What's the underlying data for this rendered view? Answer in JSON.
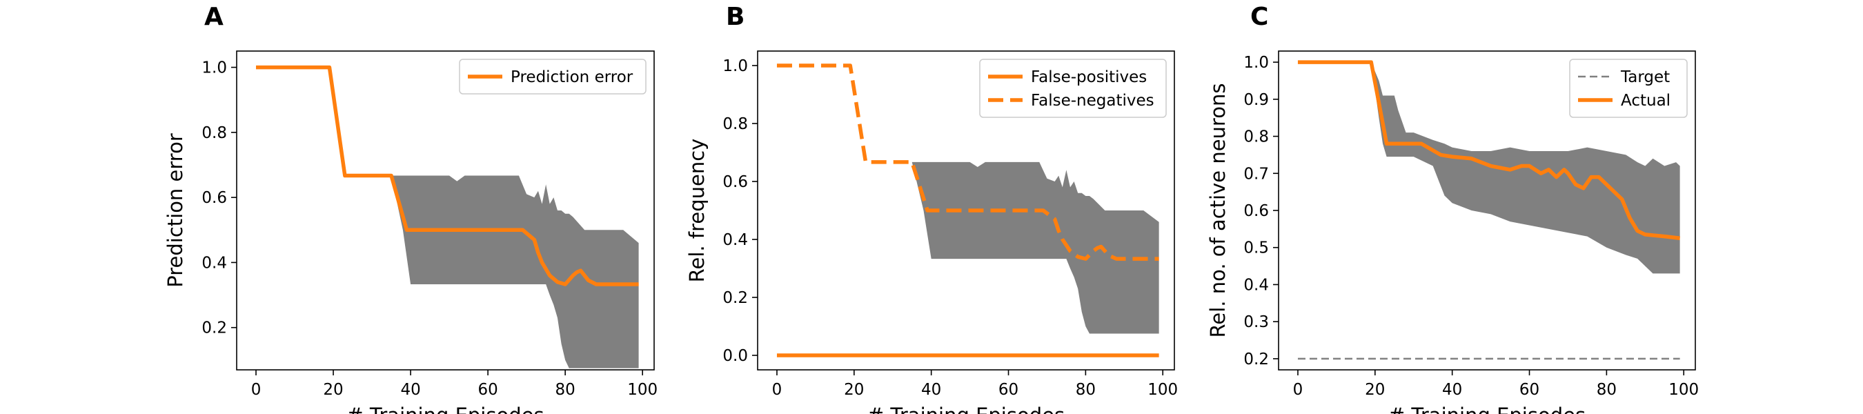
{
  "chart_data": [
    {
      "type": "line",
      "panel_label": "A",
      "xlabel": "# Training Episodes",
      "ylabel": "Prediction error",
      "xlim": [
        -5,
        103
      ],
      "ylim": [
        0.07,
        1.05
      ],
      "xticks": [
        0,
        20,
        40,
        60,
        80,
        100
      ],
      "yticks": [
        0.2,
        0.4,
        0.6,
        0.8,
        1.0
      ],
      "ytick_labels": [
        "0.2",
        "0.4",
        "0.6",
        "0.8",
        "1.0"
      ],
      "grid": false,
      "legend": "top-right",
      "colors": {
        "series": "#ff7f0e",
        "band": "#808080"
      },
      "band": {
        "x": [
          35,
          38,
          40,
          50,
          52,
          54,
          60,
          62,
          65,
          68,
          70,
          72,
          73,
          74,
          75,
          76,
          77,
          78,
          79,
          80,
          81,
          82,
          85,
          90,
          95,
          99
        ],
        "upper": [
          0.667,
          0.667,
          0.667,
          0.667,
          0.65,
          0.667,
          0.667,
          0.667,
          0.667,
          0.667,
          0.61,
          0.6,
          0.62,
          0.58,
          0.64,
          0.58,
          0.6,
          0.56,
          0.56,
          0.55,
          0.55,
          0.54,
          0.5,
          0.5,
          0.5,
          0.46
        ],
        "lower": [
          0.667,
          0.5,
          0.333,
          0.333,
          0.333,
          0.333,
          0.333,
          0.333,
          0.333,
          0.333,
          0.333,
          0.333,
          0.333,
          0.333,
          0.333,
          0.3,
          0.27,
          0.23,
          0.15,
          0.1,
          0.075,
          0.075,
          0.075,
          0.075,
          0.075,
          0.075
        ]
      },
      "series": [
        {
          "name": "Prediction error",
          "style": "solid",
          "x": [
            0,
            19,
            23,
            35,
            39,
            69,
            71,
            72,
            73,
            74,
            75,
            76,
            77,
            78,
            80,
            82,
            83,
            84,
            85,
            86,
            88,
            90,
            95,
            99
          ],
          "y": [
            1.0,
            1.0,
            0.667,
            0.667,
            0.5,
            0.5,
            0.48,
            0.47,
            0.43,
            0.4,
            0.38,
            0.36,
            0.35,
            0.34,
            0.333,
            0.36,
            0.37,
            0.375,
            0.36,
            0.345,
            0.333,
            0.333,
            0.333,
            0.333
          ]
        }
      ]
    },
    {
      "type": "line",
      "panel_label": "B",
      "xlabel": "# Training Episodes",
      "ylabel": "Rel. frequency",
      "xlim": [
        -5,
        103
      ],
      "ylim": [
        -0.05,
        1.05
      ],
      "xticks": [
        0,
        20,
        40,
        60,
        80,
        100
      ],
      "yticks": [
        0.0,
        0.2,
        0.4,
        0.6,
        0.8,
        1.0
      ],
      "ytick_labels": [
        "0.0",
        "0.2",
        "0.4",
        "0.6",
        "0.8",
        "1.0"
      ],
      "grid": false,
      "legend": "top-right",
      "colors": {
        "series": "#ff7f0e",
        "band": "#808080"
      },
      "band": {
        "x": [
          35,
          38,
          40,
          50,
          52,
          54,
          60,
          62,
          65,
          68,
          70,
          72,
          73,
          74,
          75,
          76,
          77,
          78,
          79,
          80,
          81,
          82,
          85,
          90,
          95,
          99
        ],
        "upper": [
          0.667,
          0.667,
          0.667,
          0.667,
          0.65,
          0.667,
          0.667,
          0.667,
          0.667,
          0.667,
          0.61,
          0.6,
          0.62,
          0.58,
          0.64,
          0.58,
          0.6,
          0.56,
          0.56,
          0.55,
          0.55,
          0.54,
          0.5,
          0.5,
          0.5,
          0.46
        ],
        "lower": [
          0.667,
          0.5,
          0.333,
          0.333,
          0.333,
          0.333,
          0.333,
          0.333,
          0.333,
          0.333,
          0.333,
          0.333,
          0.333,
          0.333,
          0.333,
          0.3,
          0.27,
          0.23,
          0.15,
          0.1,
          0.075,
          0.075,
          0.075,
          0.075,
          0.075,
          0.075
        ]
      },
      "series": [
        {
          "name": "False-positives",
          "style": "solid",
          "x": [
            0,
            99
          ],
          "y": [
            0.0,
            0.0
          ]
        },
        {
          "name": "False-negatives",
          "style": "dashed",
          "x": [
            0,
            19,
            23,
            35,
            39,
            69,
            71,
            72,
            73,
            74,
            75,
            76,
            77,
            78,
            80,
            82,
            83,
            84,
            85,
            86,
            88,
            90,
            95,
            99
          ],
          "y": [
            1.0,
            1.0,
            0.667,
            0.667,
            0.5,
            0.5,
            0.48,
            0.47,
            0.43,
            0.4,
            0.38,
            0.36,
            0.35,
            0.34,
            0.333,
            0.36,
            0.37,
            0.375,
            0.36,
            0.345,
            0.333,
            0.333,
            0.333,
            0.333
          ]
        }
      ]
    },
    {
      "type": "line",
      "panel_label": "C",
      "xlabel": "# Training Episodes",
      "ylabel": "Rel. no. of active neurons",
      "xlim": [
        -5,
        103
      ],
      "ylim": [
        0.17,
        1.03
      ],
      "xticks": [
        0,
        20,
        40,
        60,
        80,
        100
      ],
      "yticks": [
        0.2,
        0.3,
        0.4,
        0.5,
        0.6,
        0.7,
        0.8,
        0.9,
        1.0
      ],
      "ytick_labels": [
        "0.2",
        "0.3",
        "0.4",
        "0.5",
        "0.6",
        "0.7",
        "0.8",
        "0.9",
        "1.0"
      ],
      "grid": false,
      "legend": "top-right",
      "colors": {
        "series": "#ff7f0e",
        "target": "#808080",
        "band": "#808080"
      },
      "band": {
        "x": [
          19,
          21,
          22,
          23,
          25,
          26,
          28,
          30,
          35,
          38,
          40,
          45,
          50,
          55,
          60,
          65,
          70,
          75,
          80,
          85,
          88,
          90,
          92,
          95,
          98,
          99
        ],
        "upper": [
          1.0,
          0.95,
          0.91,
          0.91,
          0.91,
          0.87,
          0.81,
          0.81,
          0.79,
          0.78,
          0.77,
          0.76,
          0.76,
          0.77,
          0.76,
          0.76,
          0.76,
          0.77,
          0.76,
          0.75,
          0.73,
          0.72,
          0.74,
          0.72,
          0.73,
          0.72
        ],
        "lower": [
          1.0,
          0.85,
          0.78,
          0.745,
          0.745,
          0.745,
          0.745,
          0.745,
          0.72,
          0.64,
          0.62,
          0.6,
          0.59,
          0.57,
          0.56,
          0.55,
          0.54,
          0.53,
          0.5,
          0.48,
          0.47,
          0.45,
          0.43,
          0.43,
          0.43,
          0.43
        ]
      },
      "series": [
        {
          "name": "Target",
          "style": "dashed-thin",
          "x": [
            0,
            99
          ],
          "y": [
            0.2,
            0.2
          ]
        },
        {
          "name": "Actual",
          "style": "solid",
          "x": [
            0,
            19,
            23,
            32,
            37,
            40,
            45,
            50,
            55,
            58,
            60,
            63,
            65,
            67,
            69,
            70,
            72,
            74,
            76,
            78,
            80,
            82,
            84,
            86,
            88,
            90,
            95,
            99
          ],
          "y": [
            1.0,
            1.0,
            0.78,
            0.78,
            0.75,
            0.745,
            0.74,
            0.72,
            0.71,
            0.72,
            0.72,
            0.7,
            0.71,
            0.69,
            0.71,
            0.7,
            0.67,
            0.66,
            0.69,
            0.69,
            0.67,
            0.65,
            0.63,
            0.58,
            0.545,
            0.535,
            0.53,
            0.525
          ]
        }
      ]
    }
  ]
}
